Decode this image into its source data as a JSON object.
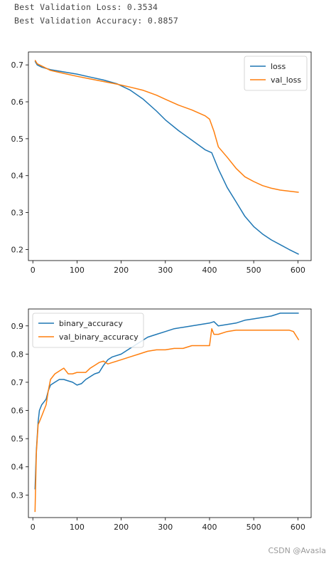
{
  "output": {
    "line1": "Best Validation Loss: 0.3534",
    "line2": "Best Validation Accuracy: 0.8857"
  },
  "watermark": "CSDN @Avasla",
  "chart_data": [
    {
      "type": "line",
      "title": "",
      "xlabel": "",
      "ylabel": "",
      "xlim": [
        -10,
        630
      ],
      "ylim": [
        0.17,
        0.735
      ],
      "xticks": [
        0,
        100,
        200,
        300,
        400,
        500,
        600
      ],
      "yticks": [
        0.2,
        0.3,
        0.4,
        0.5,
        0.6,
        0.7
      ],
      "legend": "upper right",
      "series": [
        {
          "name": "loss",
          "color": "#1f77b4",
          "x": [
            5,
            10,
            20,
            40,
            70,
            100,
            130,
            160,
            190,
            220,
            250,
            280,
            300,
            330,
            360,
            390,
            405,
            420,
            440,
            460,
            480,
            500,
            520,
            540,
            560,
            580,
            602
          ],
          "y": [
            0.71,
            0.7,
            0.694,
            0.687,
            0.681,
            0.675,
            0.667,
            0.659,
            0.649,
            0.632,
            0.607,
            0.575,
            0.551,
            0.522,
            0.496,
            0.47,
            0.462,
            0.418,
            0.368,
            0.329,
            0.29,
            0.262,
            0.242,
            0.226,
            0.213,
            0.2,
            0.187
          ]
        },
        {
          "name": "val_loss",
          "color": "#ff7f0e",
          "x": [
            5,
            10,
            20,
            40,
            70,
            100,
            130,
            160,
            190,
            220,
            250,
            280,
            300,
            330,
            360,
            390,
            400,
            410,
            420,
            440,
            460,
            480,
            500,
            520,
            540,
            560,
            580,
            602
          ],
          "y": [
            0.713,
            0.703,
            0.697,
            0.685,
            0.677,
            0.669,
            0.662,
            0.655,
            0.648,
            0.64,
            0.631,
            0.618,
            0.607,
            0.591,
            0.578,
            0.562,
            0.553,
            0.52,
            0.478,
            0.45,
            0.42,
            0.397,
            0.384,
            0.373,
            0.366,
            0.361,
            0.358,
            0.355
          ]
        }
      ]
    },
    {
      "type": "line",
      "title": "",
      "xlabel": "",
      "ylabel": "",
      "xlim": [
        -10,
        630
      ],
      "ylim": [
        0.22,
        0.96
      ],
      "xticks": [
        0,
        100,
        200,
        300,
        400,
        500,
        600
      ],
      "yticks": [
        0.3,
        0.4,
        0.5,
        0.6,
        0.7,
        0.8,
        0.9
      ],
      "legend": "upper left",
      "series": [
        {
          "name": "binary_accuracy",
          "color": "#1f77b4",
          "x": [
            5,
            8,
            12,
            15,
            20,
            25,
            30,
            35,
            40,
            50,
            60,
            70,
            80,
            90,
            100,
            110,
            120,
            130,
            140,
            150,
            160,
            170,
            180,
            200,
            220,
            240,
            260,
            280,
            300,
            320,
            340,
            360,
            380,
            400,
            410,
            420,
            440,
            460,
            480,
            500,
            520,
            540,
            560,
            580,
            602
          ],
          "y": [
            0.32,
            0.46,
            0.56,
            0.6,
            0.62,
            0.63,
            0.64,
            0.67,
            0.69,
            0.7,
            0.71,
            0.71,
            0.705,
            0.7,
            0.69,
            0.695,
            0.71,
            0.72,
            0.73,
            0.735,
            0.76,
            0.78,
            0.79,
            0.8,
            0.82,
            0.84,
            0.86,
            0.87,
            0.88,
            0.89,
            0.895,
            0.9,
            0.905,
            0.91,
            0.915,
            0.9,
            0.905,
            0.91,
            0.92,
            0.925,
            0.93,
            0.935,
            0.945,
            0.945,
            0.945
          ]
        },
        {
          "name": "val_binary_accuracy",
          "color": "#ff7f0e",
          "x": [
            5,
            8,
            12,
            15,
            20,
            25,
            30,
            35,
            40,
            50,
            60,
            70,
            80,
            90,
            100,
            110,
            120,
            130,
            140,
            150,
            160,
            170,
            180,
            200,
            220,
            240,
            260,
            280,
            300,
            320,
            340,
            360,
            380,
            400,
            405,
            410,
            420,
            440,
            460,
            480,
            500,
            520,
            540,
            560,
            580,
            590,
            598,
            602
          ],
          "y": [
            0.24,
            0.45,
            0.55,
            0.56,
            0.58,
            0.6,
            0.62,
            0.67,
            0.71,
            0.73,
            0.74,
            0.75,
            0.73,
            0.73,
            0.735,
            0.735,
            0.735,
            0.75,
            0.76,
            0.77,
            0.775,
            0.765,
            0.77,
            0.78,
            0.79,
            0.8,
            0.81,
            0.815,
            0.815,
            0.82,
            0.82,
            0.83,
            0.83,
            0.83,
            0.89,
            0.87,
            0.87,
            0.88,
            0.885,
            0.885,
            0.885,
            0.885,
            0.885,
            0.885,
            0.885,
            0.88,
            0.86,
            0.85
          ]
        }
      ]
    }
  ]
}
